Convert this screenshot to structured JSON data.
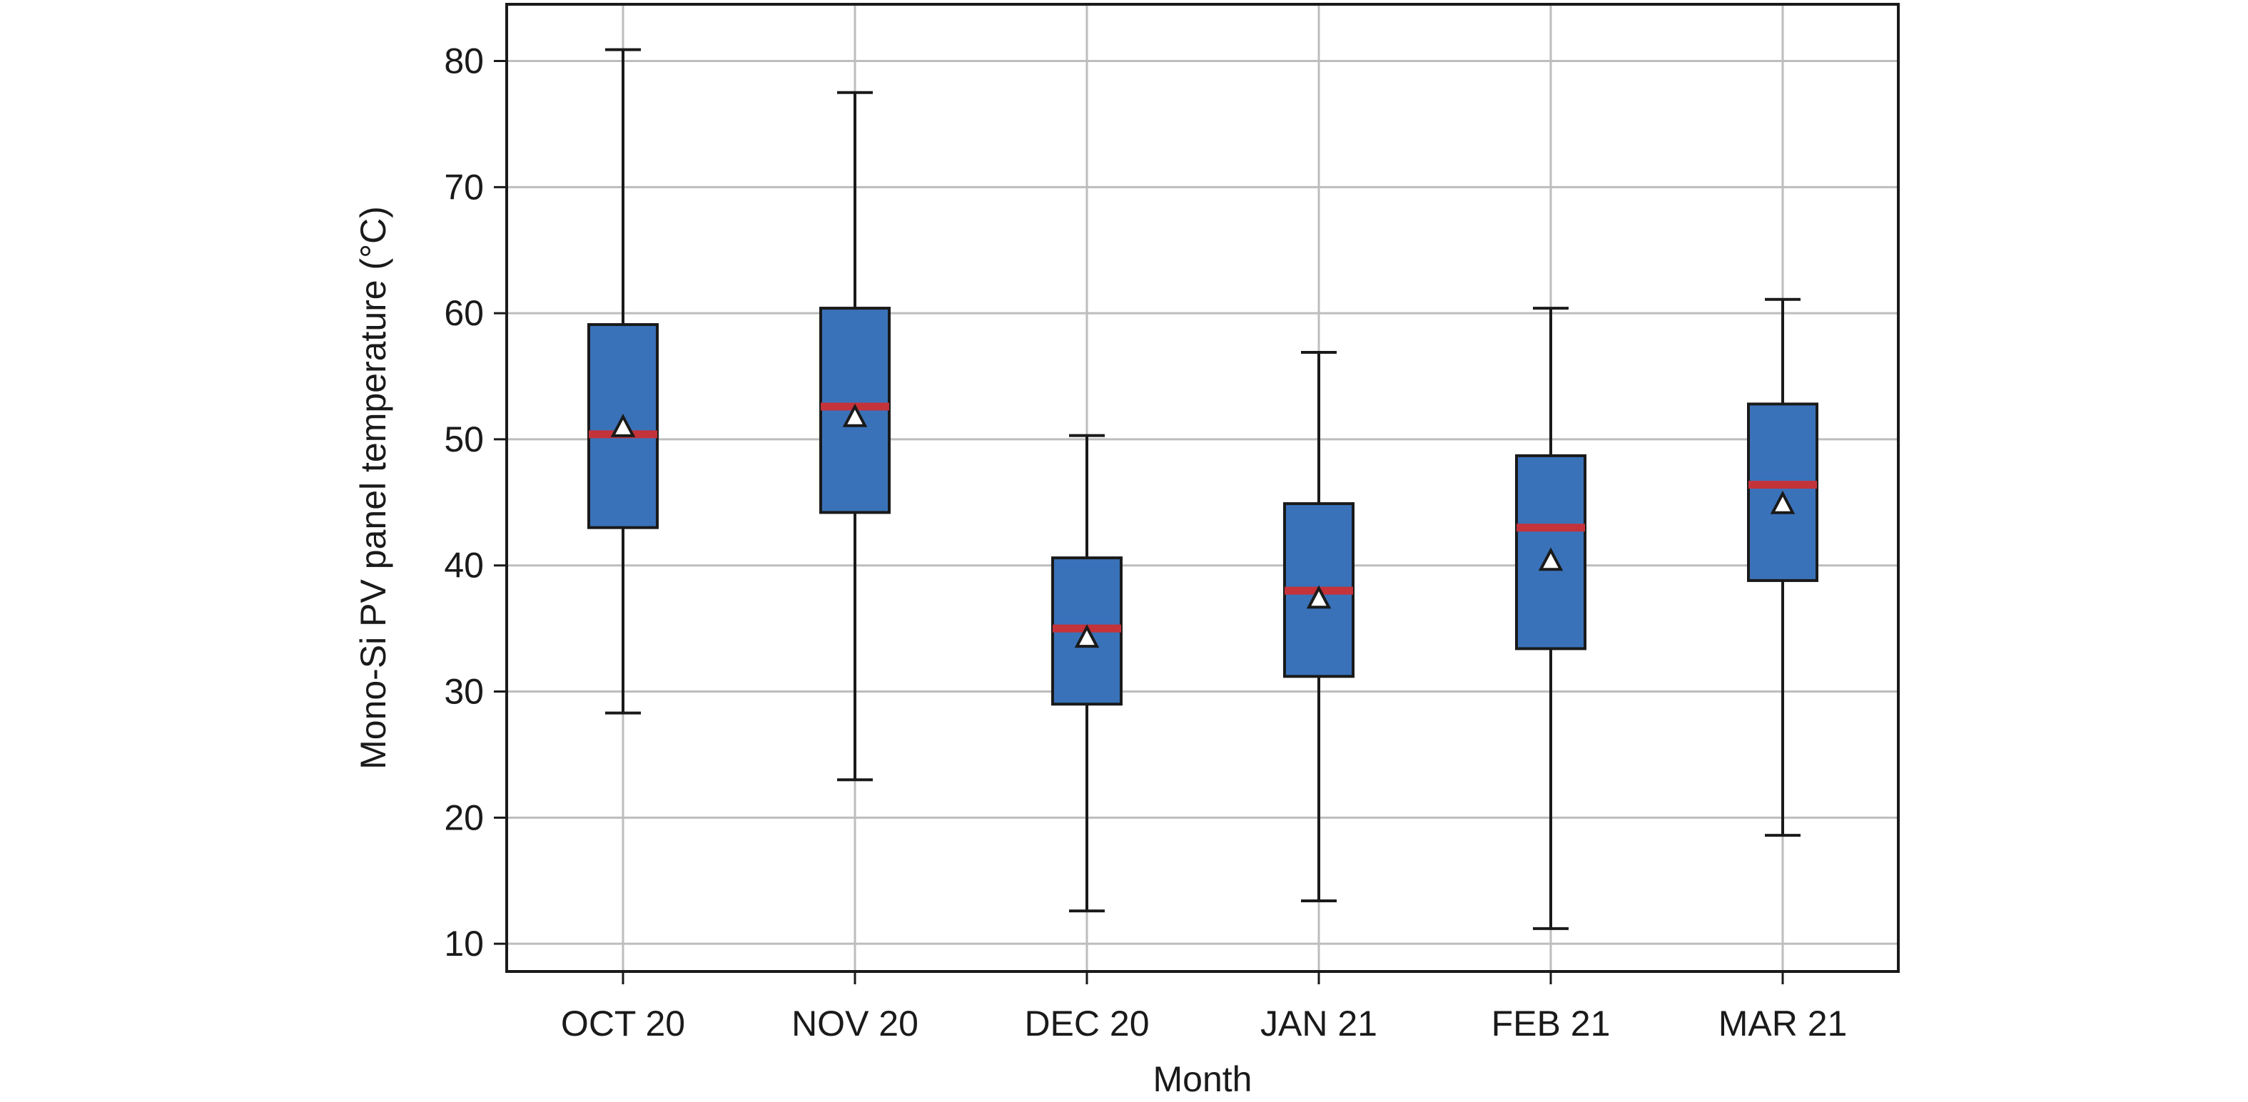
{
  "chart_data": {
    "type": "box",
    "title": "",
    "xlabel": "Month",
    "ylabel": "Mono-Si PV panel temperature (°C)",
    "categories": [
      "OCT 20",
      "NOV 20",
      "DEC 20",
      "JAN 21",
      "FEB 21",
      "MAR 21"
    ],
    "ylim": [
      7.8,
      84.5
    ],
    "yticks": [
      10,
      20,
      30,
      40,
      50,
      60,
      70,
      80
    ],
    "grid": true,
    "legend": "none",
    "boxes": [
      {
        "category": "OCT 20",
        "whisker_low": 28.3,
        "q1": 43.0,
        "median": 50.4,
        "mean": 51.0,
        "q3": 59.1,
        "whisker_high": 80.9
      },
      {
        "category": "NOV 20",
        "whisker_low": 23.0,
        "q1": 44.2,
        "median": 52.6,
        "mean": 51.8,
        "q3": 60.4,
        "whisker_high": 77.5
      },
      {
        "category": "DEC 20",
        "whisker_low": 12.6,
        "q1": 29.0,
        "median": 35.0,
        "mean": 34.3,
        "q3": 40.6,
        "whisker_high": 50.3
      },
      {
        "category": "JAN 21",
        "whisker_low": 13.4,
        "q1": 31.2,
        "median": 38.0,
        "mean": 37.4,
        "q3": 44.9,
        "whisker_high": 56.9
      },
      {
        "category": "FEB 21",
        "whisker_low": 11.2,
        "q1": 33.4,
        "median": 43.0,
        "mean": 40.4,
        "q3": 48.7,
        "whisker_high": 60.4
      },
      {
        "category": "MAR 21",
        "whisker_low": 18.6,
        "q1": 38.8,
        "median": 46.4,
        "mean": 44.9,
        "q3": 52.8,
        "whisker_high": 61.1
      }
    ],
    "colors": {
      "box_fill": "#3a72b9",
      "median_line": "#c4323a",
      "mean_marker": "#ffffff",
      "outline": "#1a1a1a",
      "grid": "#bdbdbd"
    }
  }
}
